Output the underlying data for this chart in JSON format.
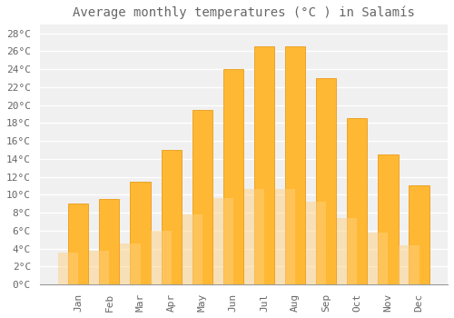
{
  "title": "Average monthly temperatures (°C ) in Salamís",
  "months": [
    "Jan",
    "Feb",
    "Mar",
    "Apr",
    "May",
    "Jun",
    "Jul",
    "Aug",
    "Sep",
    "Oct",
    "Nov",
    "Dec"
  ],
  "values": [
    9,
    9.5,
    11.5,
    15,
    19.5,
    24,
    26.5,
    26.5,
    23,
    18.5,
    14.5,
    11
  ],
  "bar_color_top": "#FFA500",
  "bar_color_bottom": "#FFD070",
  "bar_color": "#FFB833",
  "bar_edge_color": "#E89000",
  "background_color": "#FFFFFF",
  "plot_bg_color": "#F0F0F0",
  "grid_color": "#FFFFFF",
  "text_color": "#666666",
  "ylim": [
    0,
    29
  ],
  "ytick_step": 2,
  "title_fontsize": 10,
  "tick_fontsize": 8,
  "font_family": "monospace"
}
